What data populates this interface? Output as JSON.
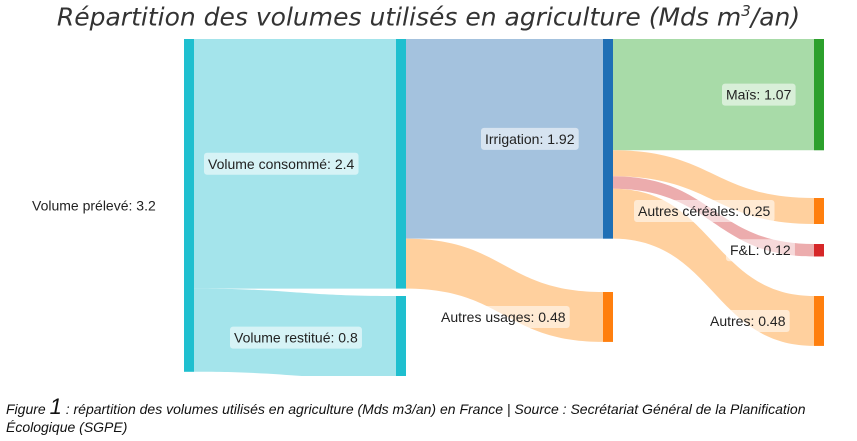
{
  "chart_data": {
    "type": "sankey",
    "title_main": "Répartition des volumes utilisés en agriculture (Mds m",
    "title_sup": "3",
    "title_end": "/an)",
    "nodes": [
      {
        "id": "preleve",
        "label": "Volume prélevé: 3.2",
        "value": 3.2,
        "color": "#1fbfcf"
      },
      {
        "id": "consomme",
        "label": "Volume consommé: 2.4",
        "value": 2.4,
        "color": "#1fbfcf"
      },
      {
        "id": "restitue",
        "label": "Volume restitué: 0.8",
        "value": 0.8,
        "color": "#1fbfcf"
      },
      {
        "id": "irrigation",
        "label": "Irrigation: 1.92",
        "value": 1.92,
        "color": "#1f6fb5"
      },
      {
        "id": "autres_usages",
        "label": "Autres usages: 0.48",
        "value": 0.48,
        "color": "#ff7f0e"
      },
      {
        "id": "mais",
        "label": "Maïs: 1.07",
        "value": 1.07,
        "color": "#2ca02c"
      },
      {
        "id": "autres_cereales",
        "label": "Autres céréales: 0.25",
        "value": 0.25,
        "color": "#ff7f0e"
      },
      {
        "id": "fl",
        "label": "F&L: 0.12",
        "value": 0.12,
        "color": "#d62728"
      },
      {
        "id": "autres",
        "label": "Autres: 0.48",
        "value": 0.48,
        "color": "#ff7f0e"
      }
    ],
    "links": [
      {
        "source": "preleve",
        "target": "consomme",
        "value": 2.4,
        "color": "#9fe3ea"
      },
      {
        "source": "preleve",
        "target": "restitue",
        "value": 0.8,
        "color": "#9fe3ea"
      },
      {
        "source": "consomme",
        "target": "irrigation",
        "value": 1.92,
        "color": "#9fbfdc"
      },
      {
        "source": "consomme",
        "target": "autres_usages",
        "value": 0.48,
        "color": "#ffcd99"
      },
      {
        "source": "irrigation",
        "target": "mais",
        "value": 1.07,
        "color": "#a3d9a3"
      },
      {
        "source": "irrigation",
        "target": "autres_cereales",
        "value": 0.25,
        "color": "#ffcd99"
      },
      {
        "source": "irrigation",
        "target": "fl",
        "value": 0.12,
        "color": "#eba8a9"
      },
      {
        "source": "irrigation",
        "target": "autres",
        "value": 0.48,
        "color": "#ffcd99"
      }
    ]
  },
  "caption": {
    "prefix": "Figure ",
    "number": "1",
    "text": " : répartition des volumes utilisés en agriculture (Mds m3/an) en France | Source : Secrétariat Général de la Planification Écologique (SGPE)"
  }
}
